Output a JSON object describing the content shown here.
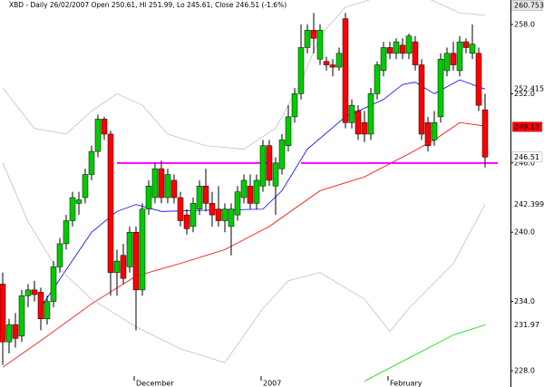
{
  "chart_data": {
    "type": "candlestick",
    "title": "XBD - Daily 26/02/2007 Open 250.61, Hi 251.99, Lo 245.61, Close 246.51 (-1.6%)",
    "categories": [
      null,
      null,
      null,
      null,
      null,
      null,
      null,
      null,
      null,
      null,
      null,
      null,
      null,
      null,
      null,
      null,
      null,
      null,
      null,
      null,
      null,
      "December",
      null,
      null,
      null,
      null,
      null,
      null,
      null,
      null,
      null,
      null,
      null,
      null,
      null,
      null,
      null,
      null,
      null,
      null,
      null,
      "2007",
      null,
      null,
      null,
      null,
      null,
      null,
      null,
      null,
      null,
      null,
      null,
      null,
      null,
      null,
      null,
      null,
      null,
      null,
      null,
      "February",
      null,
      null,
      null,
      null,
      null,
      null,
      null,
      null,
      null,
      null,
      null,
      null,
      null,
      null,
      null
    ],
    "open": [
      235.5,
      230.5,
      232.0,
      231.0,
      234.5,
      235.0,
      234.8,
      232.5,
      234.0,
      237.0,
      239.0,
      241.0,
      242.5,
      243.0,
      245.0,
      247.0,
      249.8,
      248.5,
      236.5,
      238.0,
      237.0,
      240.0,
      235.0,
      242.0,
      243.0,
      245.5,
      243.0,
      244.5,
      243.0,
      241.5,
      240.5,
      242.0,
      244.0,
      242.5,
      242.0,
      241.0,
      240.5,
      241.5,
      243.0,
      244.0,
      242.5,
      244.0,
      247.5,
      244.0,
      245.5,
      247.5,
      250.0,
      252.0,
      256.0,
      257.5,
      255.0,
      254.8,
      254.5,
      254.3,
      258.5,
      249.5,
      250.5,
      249.5,
      248.5,
      252.0,
      254.0,
      256.0,
      255.5,
      256.2,
      255.5,
      256.5,
      254.5,
      249.5,
      248.0,
      250.0,
      254.0,
      255.5,
      254.0,
      256.5,
      255.5,
      255.5,
      250.61
    ],
    "high": [
      236.5,
      232.5,
      233.0,
      235.0,
      235.5,
      235.8,
      235.2,
      234.5,
      237.5,
      239.5,
      241.5,
      243.5,
      243.5,
      245.5,
      247.5,
      250.2,
      250.0,
      248.8,
      238.5,
      239.0,
      240.5,
      240.5,
      242.5,
      244.5,
      246.0,
      246.2,
      245.5,
      245.0,
      243.5,
      242.0,
      243.0,
      244.5,
      245.5,
      243.5,
      244.0,
      242.5,
      242.5,
      244.0,
      245.0,
      245.0,
      245.0,
      248.0,
      248.0,
      246.5,
      248.5,
      251.0,
      252.5,
      258.0,
      258.0,
      259.0,
      258.0,
      255.2,
      255.0,
      256.0,
      259.0,
      251.5,
      251.0,
      250.5,
      252.5,
      254.8,
      256.5,
      256.5,
      256.8,
      256.8,
      257.2,
      257.0,
      255.0,
      250.0,
      250.5,
      255.5,
      256.0,
      256.5,
      257.0,
      256.8,
      258.0,
      256.0,
      251.99
    ],
    "low": [
      228.5,
      229.5,
      230.0,
      230.5,
      233.5,
      234.0,
      231.5,
      232.0,
      233.5,
      236.5,
      238.5,
      240.5,
      241.5,
      242.5,
      244.5,
      246.5,
      248.0,
      234.5,
      234.5,
      235.5,
      236.5,
      231.5,
      234.5,
      241.5,
      242.5,
      242.5,
      242.5,
      242.5,
      240.5,
      239.8,
      240.0,
      241.5,
      241.8,
      240.5,
      240.5,
      240.0,
      238.0,
      241.0,
      242.5,
      242.0,
      242.0,
      243.5,
      244.0,
      241.5,
      245.0,
      247.0,
      249.5,
      251.5,
      255.5,
      255.5,
      254.5,
      254.0,
      253.5,
      254.0,
      249.0,
      249.0,
      248.0,
      247.8,
      248.0,
      251.5,
      253.5,
      255.0,
      255.0,
      255.0,
      255.0,
      254.0,
      248.0,
      247.0,
      247.5,
      249.5,
      253.5,
      254.0,
      253.5,
      255.5,
      255.0,
      250.5,
      245.61
    ],
    "close": [
      230.5,
      232.0,
      230.8,
      234.5,
      235.0,
      234.6,
      232.5,
      234.0,
      237.0,
      239.0,
      241.0,
      243.0,
      242.8,
      245.0,
      247.0,
      249.8,
      248.5,
      236.5,
      237.5,
      236.0,
      240.0,
      235.0,
      242.0,
      244.0,
      245.5,
      243.0,
      245.0,
      243.0,
      241.0,
      240.3,
      242.5,
      244.0,
      242.5,
      241.5,
      241.0,
      242.0,
      242.0,
      243.5,
      244.5,
      242.5,
      244.5,
      247.5,
      244.5,
      246.0,
      248.0,
      250.0,
      252.0,
      256.0,
      257.5,
      256.8,
      257.5,
      254.5,
      254.3,
      255.5,
      249.5,
      251.0,
      248.5,
      248.5,
      252.0,
      254.5,
      256.0,
      255.5,
      256.5,
      255.5,
      257.0,
      254.5,
      248.5,
      247.5,
      249.5,
      255.0,
      255.5,
      254.5,
      256.5,
      256.0,
      256.3,
      251.0,
      246.51
    ],
    "up_color": "#00cc00",
    "down_color": "#ff0000",
    "lines": [
      {
        "color": "#0000ff",
        "x": [
          6,
          14,
          18,
          21,
          25,
          32,
          41,
          44,
          48,
          54,
          60,
          63,
          65,
          68,
          72,
          76
        ],
        "values": [
          233.5,
          240.0,
          241.8,
          242.4,
          241.8,
          241.9,
          242.0,
          243.6,
          247.2,
          250.0,
          251.5,
          252.8,
          253.0,
          252.0,
          253.2,
          252.4
        ]
      },
      {
        "color": "#ff0000",
        "x": [
          0,
          7,
          14,
          21,
          28,
          35,
          42,
          50,
          57,
          64,
          68,
          72,
          76
        ],
        "values": [
          228.3,
          231.0,
          233.8,
          236.2,
          237.3,
          238.5,
          240.5,
          243.6,
          244.8,
          246.8,
          248.0,
          249.5,
          249.2
        ]
      },
      {
        "color": "#00dd00",
        "x": [
          57,
          64,
          71,
          76
        ],
        "values": [
          227.1,
          229.1,
          231.1,
          231.97
        ]
      },
      {
        "color": "#c0c0c0",
        "x": [
          0,
          5,
          10,
          14,
          18,
          22,
          26,
          32,
          38,
          43,
          47,
          50,
          54,
          60,
          66,
          72,
          76
        ],
        "values": [
          252.5,
          249.0,
          248.5,
          250.5,
          252.0,
          251.0,
          248.5,
          247.5,
          247.2,
          249.0,
          253.0,
          257.0,
          259.5,
          260.5,
          260.5,
          259.0,
          258.8
        ]
      },
      {
        "color": "#c0c0c0",
        "x": [
          0,
          4,
          8,
          14,
          21,
          28,
          35,
          41,
          45,
          50,
          57,
          61,
          64,
          71,
          76
        ],
        "values": [
          246.0,
          240.9,
          237.3,
          234.2,
          231.8,
          229.9,
          228.7,
          233.4,
          235.8,
          236.5,
          234.2,
          231.4,
          233.4,
          237.3,
          242.399
        ]
      }
    ],
    "support_lines": [
      {
        "color": "#ff00ff",
        "value": 246.0,
        "x": [
          18,
          42
        ]
      },
      {
        "color": "#ff00ff",
        "value": 246.0,
        "x": [
          47,
          78
        ]
      }
    ],
    "price_labels": [
      {
        "value": 260.753,
        "label": "260.753",
        "color": "#000000",
        "background": "#e8e8e8"
      },
      {
        "value": 252.415,
        "label": "252.415",
        "color": "#0000ff"
      },
      {
        "value": 249.13,
        "label": "249.13",
        "color": "#ffffff",
        "background": "#ff0000"
      },
      {
        "value": 246.51,
        "label": "246.51",
        "color": "#000000",
        "background": "#ffffff"
      },
      {
        "value": 242.399,
        "label": "242.399",
        "color": "#808080"
      },
      {
        "value": 231.97,
        "label": "231.97",
        "color": "#00aa00"
      }
    ],
    "ylim": [
      226.59,
      260.12
    ],
    "yticks": [
      {
        "value": 228,
        "label": "228.0"
      },
      {
        "value": 234,
        "label": "234.0"
      },
      {
        "value": 240,
        "label": "240.0"
      },
      {
        "value": 246,
        "label": "246.0"
      },
      {
        "value": 252,
        "label": "252.0"
      },
      {
        "value": 258,
        "label": "258.0"
      }
    ]
  }
}
